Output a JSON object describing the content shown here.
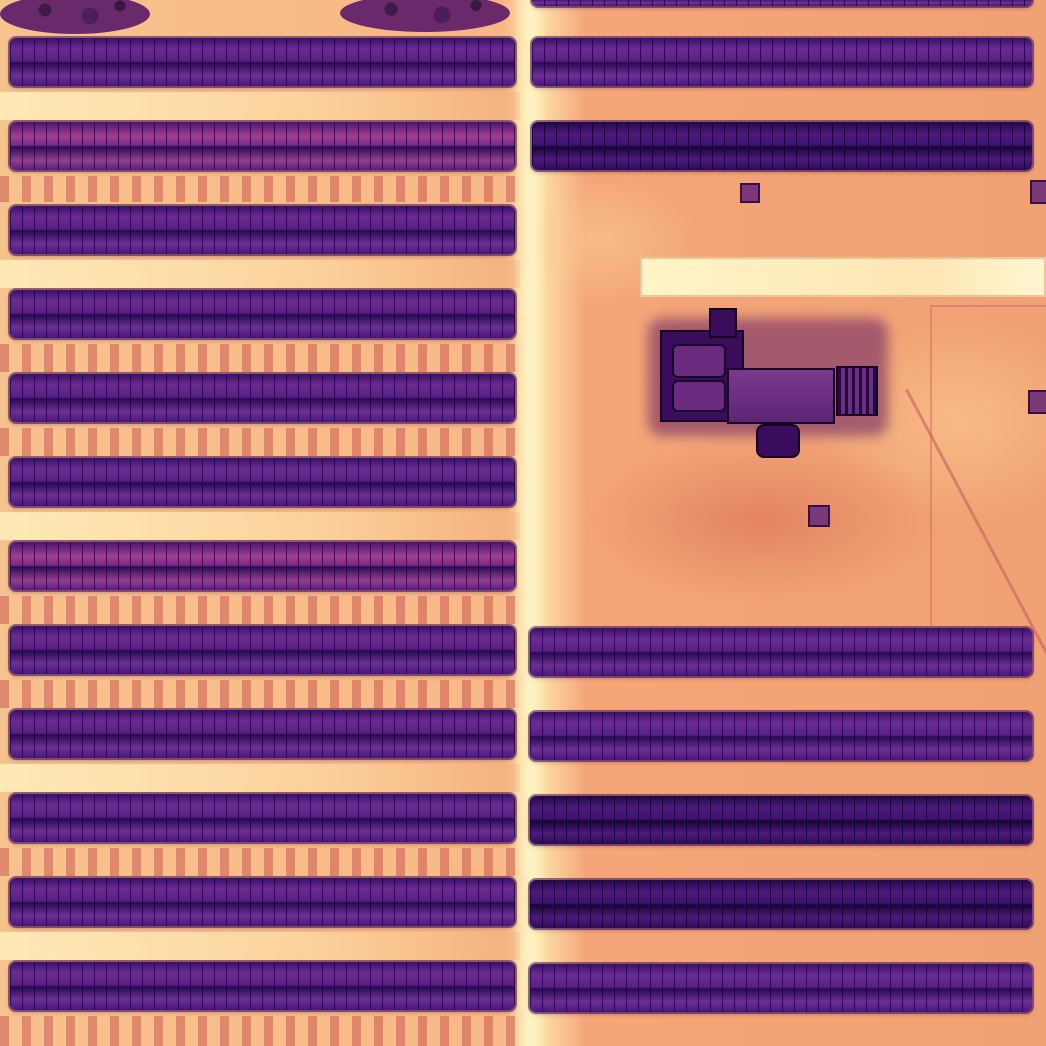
{
  "scene": {
    "description_type": "thermal aerial image of a solar farm",
    "palette": {
      "ground_hot": "#fde9b0",
      "ground_warm": "#f2a070",
      "panel_cool": "#4a167a",
      "panel_dark": "#240748",
      "building": "#3a0c5c"
    },
    "left_panel_rows": 12,
    "right_panel_rows_top": 2,
    "right_panel_rows_bottom": 5
  }
}
